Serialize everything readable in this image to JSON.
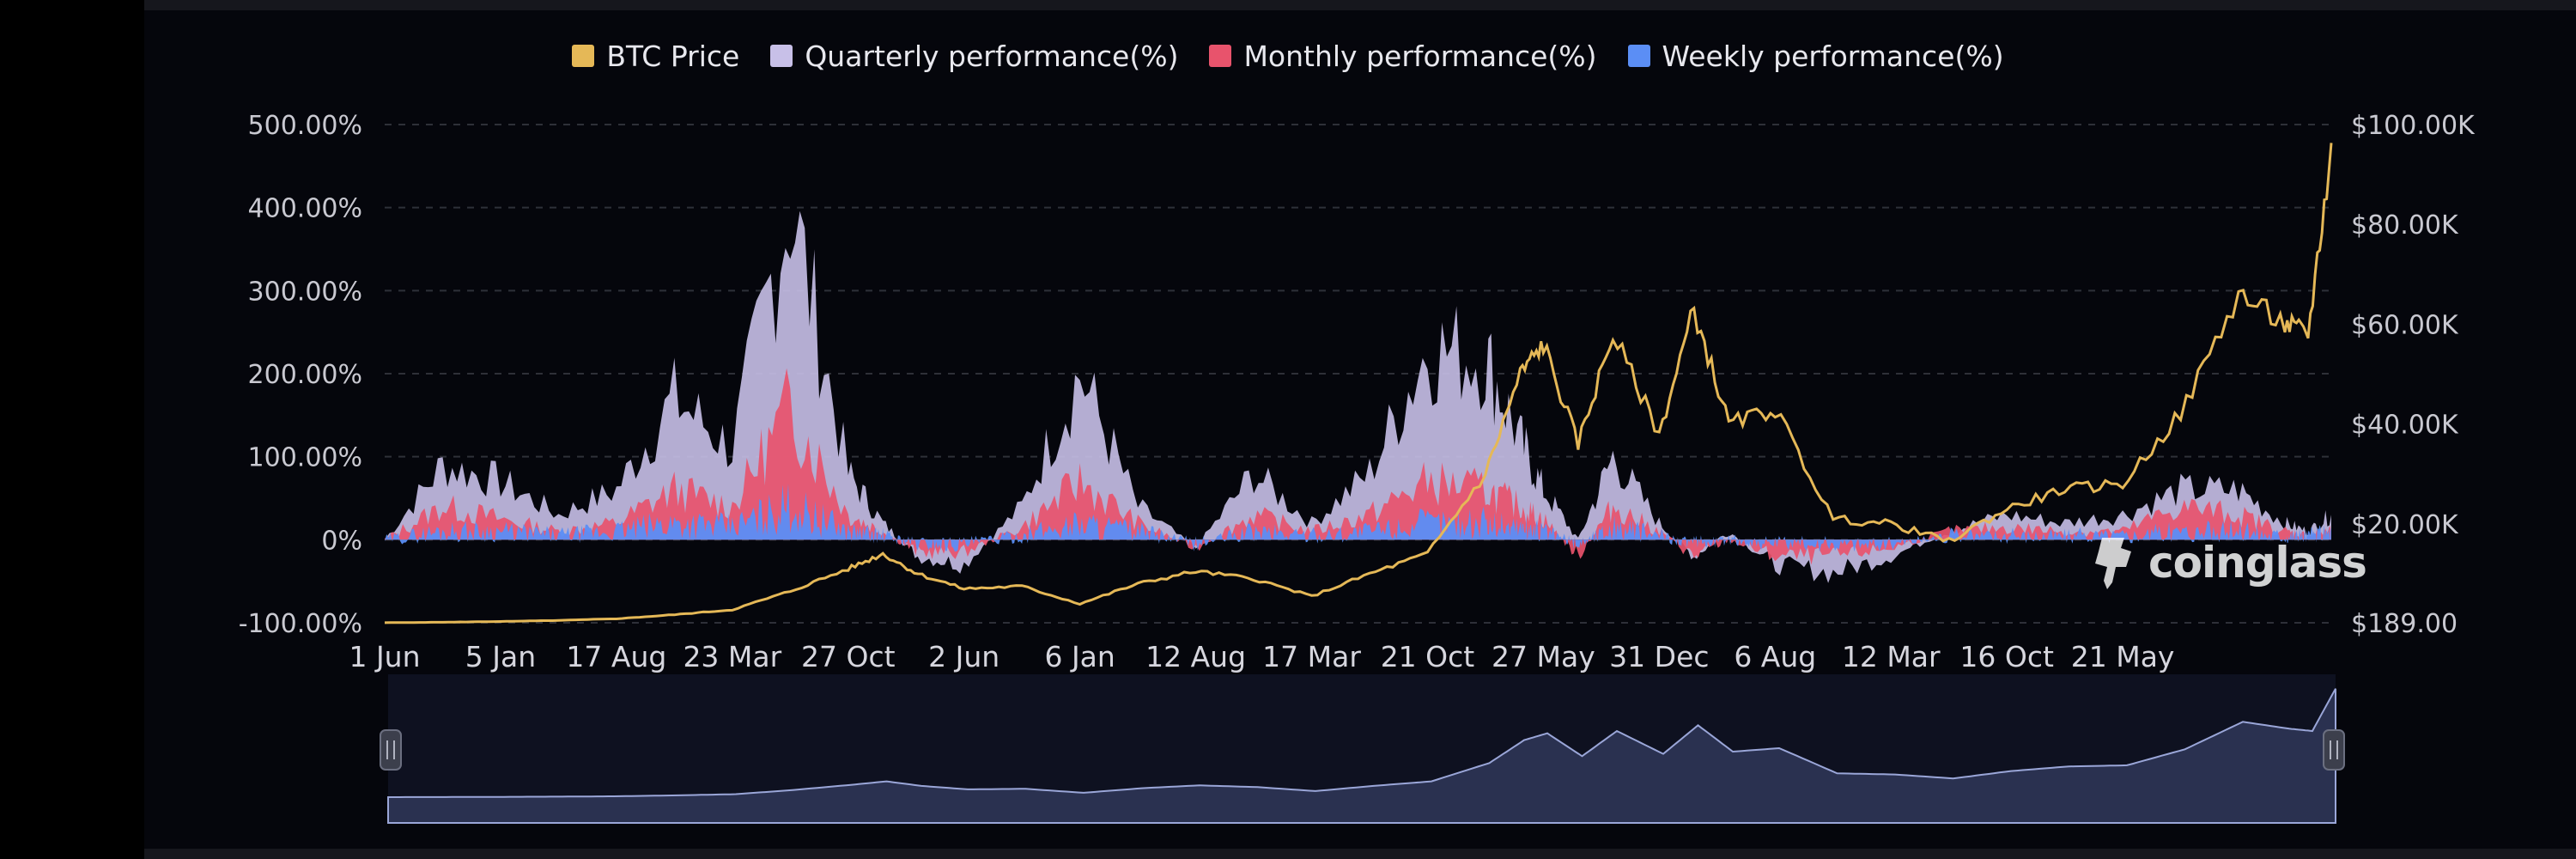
{
  "colors": {
    "btc_price": "#e5b857",
    "quarterly": "#c8c0e8",
    "monthly": "#e8536c",
    "weekly": "#5b8ef5",
    "background": "#05060c",
    "navigator_fill": "#2a3150",
    "navigator_line": "#9aa6d8"
  },
  "legend": [
    {
      "key": "btc_price",
      "label": "BTC Price"
    },
    {
      "key": "quarterly",
      "label": "Quarterly performance(%)"
    },
    {
      "key": "monthly",
      "label": "Monthly performance(%)"
    },
    {
      "key": "weekly",
      "label": "Weekly performance(%)"
    }
  ],
  "watermark": {
    "text": "coinglass",
    "icon": "coinglass-logo-icon"
  },
  "chart_data": {
    "type": "area",
    "x_tick_labels": [
      "1 Jun",
      "5 Jan",
      "17 Aug",
      "23 Mar",
      "27 Oct",
      "2 Jun",
      "6 Jan",
      "12 Aug",
      "17 Mar",
      "21 Oct",
      "27 May",
      "31 Dec",
      "6 Aug",
      "12 Mar",
      "16 Oct",
      "21 May"
    ],
    "y_left": {
      "ticks": [
        "500.00%",
        "400.00%",
        "300.00%",
        "200.00%",
        "100.00%",
        "0%",
        "-100.00%"
      ],
      "range": [
        -100,
        500
      ]
    },
    "y_right": {
      "ticks": [
        "$100.00K",
        "$80.00K",
        "$60.00K",
        "$40.00K",
        "$20.00K",
        "$189.00"
      ],
      "range": [
        189,
        100000
      ]
    },
    "grid": true,
    "legend_position": "top-center",
    "x": [
      0,
      0.5,
      1,
      1.5,
      2,
      2.5,
      3,
      3.5,
      4,
      4.3,
      4.6,
      5,
      5.5,
      6,
      6.5,
      7,
      7.5,
      8,
      8.5,
      9,
      9.5,
      9.8,
      10,
      10.3,
      10.6,
      11,
      11.3,
      11.6,
      12,
      12.5,
      13,
      13.5,
      14,
      14.5,
      15,
      15.5,
      16,
      16.4,
      16.6,
      16.8
    ],
    "series": [
      {
        "name": "BTC Price",
        "axis": "right",
        "values": [
          200,
          300,
          450,
          650,
          1000,
          1800,
          2800,
          6500,
          11000,
          14000,
          10000,
          7000,
          7500,
          4000,
          8000,
          10500,
          9000,
          5500,
          10000,
          14000,
          30000,
          50000,
          56000,
          36000,
          58000,
          38000,
          63000,
          40000,
          43000,
          21000,
          20000,
          16500,
          23000,
          27000,
          28000,
          42000,
          66000,
          60000,
          58000,
          95000
        ]
      },
      {
        "name": "Quarterly performance(%)",
        "axis": "left",
        "values": [
          0,
          90,
          70,
          30,
          60,
          170,
          110,
          410,
          80,
          20,
          -20,
          -30,
          40,
          200,
          40,
          -10,
          80,
          20,
          80,
          230,
          220,
          120,
          60,
          0,
          100,
          20,
          -20,
          10,
          -30,
          -40,
          -20,
          10,
          30,
          20,
          30,
          60,
          60,
          20,
          10,
          30
        ]
      },
      {
        "name": "Monthly performance(%)",
        "axis": "left",
        "values": [
          0,
          40,
          25,
          10,
          20,
          60,
          40,
          160,
          30,
          10,
          -15,
          -15,
          15,
          70,
          20,
          -10,
          30,
          10,
          30,
          70,
          60,
          40,
          25,
          -20,
          40,
          10,
          -20,
          0,
          -20,
          -20,
          -10,
          10,
          15,
          10,
          10,
          40,
          30,
          10,
          5,
          10
        ]
      },
      {
        "name": "Weekly performance(%)",
        "axis": "left",
        "values": [
          0,
          10,
          10,
          5,
          10,
          20,
          15,
          40,
          10,
          5,
          -5,
          -5,
          5,
          20,
          10,
          -5,
          10,
          5,
          10,
          20,
          20,
          15,
          10,
          -5,
          15,
          5,
          -5,
          0,
          -5,
          -5,
          -5,
          5,
          5,
          5,
          5,
          10,
          10,
          5,
          5,
          10
        ]
      }
    ]
  }
}
